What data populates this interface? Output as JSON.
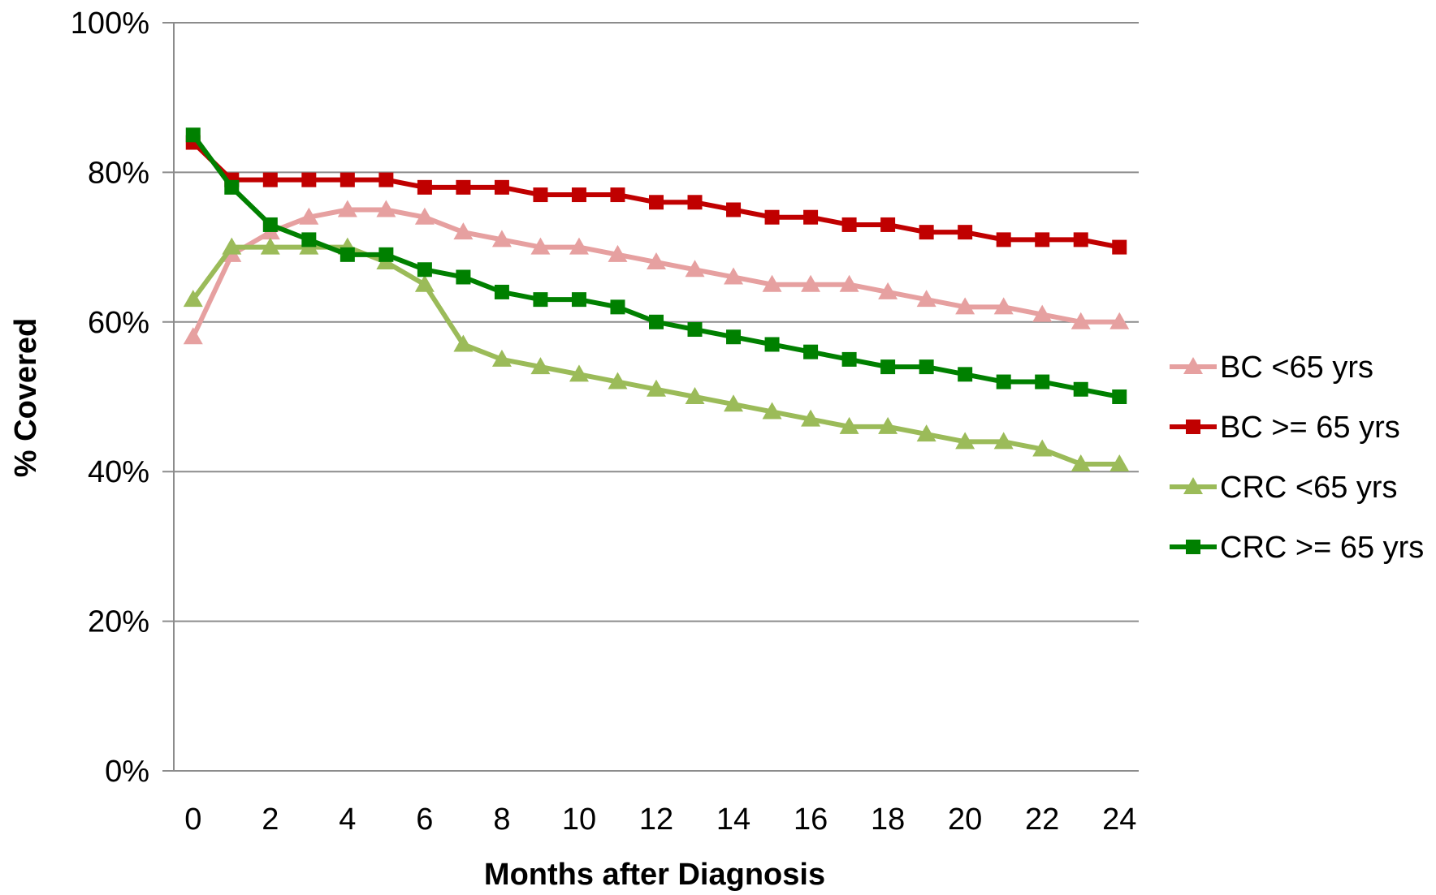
{
  "chart_data": {
    "type": "line",
    "title": "",
    "xlabel": "Months after Diagnosis",
    "ylabel": "% Covered",
    "x": [
      0,
      1,
      2,
      3,
      4,
      5,
      6,
      7,
      8,
      9,
      10,
      11,
      12,
      13,
      14,
      15,
      16,
      17,
      18,
      19,
      20,
      21,
      22,
      23,
      24
    ],
    "x_tick_labels": [
      "0",
      "2",
      "4",
      "6",
      "8",
      "10",
      "12",
      "14",
      "16",
      "18",
      "20",
      "22",
      "24"
    ],
    "y_tick_labels": [
      "0%",
      "20%",
      "40%",
      "60%",
      "80%",
      "100%"
    ],
    "xlim": [
      0,
      24
    ],
    "ylim": [
      0,
      100
    ],
    "grid": "horizontal",
    "legend_position": "right",
    "series": [
      {
        "name": "BC <65 yrs",
        "color": "#E6A0A0",
        "marker": "triangle",
        "values": [
          58,
          69,
          72,
          74,
          75,
          75,
          74,
          72,
          71,
          70,
          70,
          69,
          68,
          67,
          66,
          65,
          65,
          65,
          64,
          63,
          62,
          62,
          61,
          60,
          60
        ]
      },
      {
        "name": "BC >= 65 yrs",
        "color": "#C00000",
        "marker": "square",
        "values": [
          84,
          79,
          79,
          79,
          79,
          79,
          78,
          78,
          78,
          77,
          77,
          77,
          76,
          76,
          75,
          74,
          74,
          73,
          73,
          72,
          72,
          71,
          71,
          71,
          70
        ]
      },
      {
        "name": "CRC <65 yrs",
        "color": "#9BBB59",
        "marker": "triangle",
        "values": [
          63,
          70,
          70,
          70,
          70,
          68,
          65,
          57,
          55,
          54,
          53,
          52,
          51,
          50,
          49,
          48,
          47,
          46,
          46,
          45,
          44,
          44,
          43,
          41,
          41
        ]
      },
      {
        "name": "CRC >= 65 yrs",
        "color": "#008000",
        "marker": "square",
        "values": [
          85,
          78,
          73,
          71,
          69,
          69,
          67,
          66,
          64,
          63,
          63,
          62,
          60,
          59,
          58,
          57,
          56,
          55,
          54,
          54,
          53,
          52,
          52,
          51,
          50
        ]
      }
    ]
  }
}
